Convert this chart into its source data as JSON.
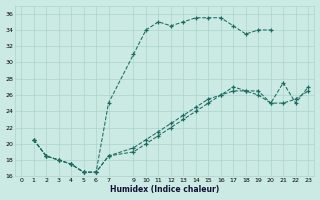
{
  "xlabel": "Humidex (Indice chaleur)",
  "bg_color": "#cceae4",
  "grid_color": "#aad4cc",
  "line_color": "#1a6b60",
  "xlim": [
    -0.5,
    23.5
  ],
  "ylim": [
    16,
    37
  ],
  "xticks": [
    0,
    1,
    2,
    3,
    4,
    5,
    6,
    7,
    9,
    10,
    11,
    12,
    13,
    14,
    15,
    16,
    17,
    18,
    19,
    20,
    21,
    22,
    23
  ],
  "yticks": [
    16,
    18,
    20,
    22,
    24,
    26,
    28,
    30,
    32,
    34,
    36
  ],
  "series": [
    {
      "x": [
        1,
        2,
        3,
        4,
        5,
        6,
        7,
        9,
        10,
        11,
        12,
        13,
        14,
        15,
        16,
        17,
        18,
        19,
        20
      ],
      "y": [
        20.5,
        18.5,
        18,
        17.5,
        16.5,
        16.5,
        25,
        31,
        34,
        35,
        34.5,
        35,
        35.5,
        35.5,
        35.5,
        34.5,
        33.5,
        34,
        34
      ]
    },
    {
      "x": [
        1,
        2,
        3,
        4,
        5,
        6,
        7,
        9,
        10,
        11,
        12,
        13,
        14,
        15,
        16,
        17,
        18,
        19,
        20,
        21,
        22,
        23
      ],
      "y": [
        20.5,
        18.5,
        18,
        17.5,
        16.5,
        16.5,
        18.5,
        19,
        20,
        21,
        22,
        23,
        24,
        25,
        26,
        27,
        26.5,
        26,
        25,
        27.5,
        25,
        27
      ]
    },
    {
      "x": [
        1,
        2,
        3,
        4,
        5,
        6,
        7,
        9,
        10,
        11,
        12,
        13,
        14,
        15,
        16,
        17,
        18,
        19,
        20,
        21,
        22,
        23
      ],
      "y": [
        20.5,
        18.5,
        18,
        17.5,
        16.5,
        16.5,
        18.5,
        19.5,
        20.5,
        21.5,
        22.5,
        23.5,
        24.5,
        25.5,
        26,
        26.5,
        26.5,
        26.5,
        25,
        25,
        25.5,
        26.5
      ]
    }
  ]
}
